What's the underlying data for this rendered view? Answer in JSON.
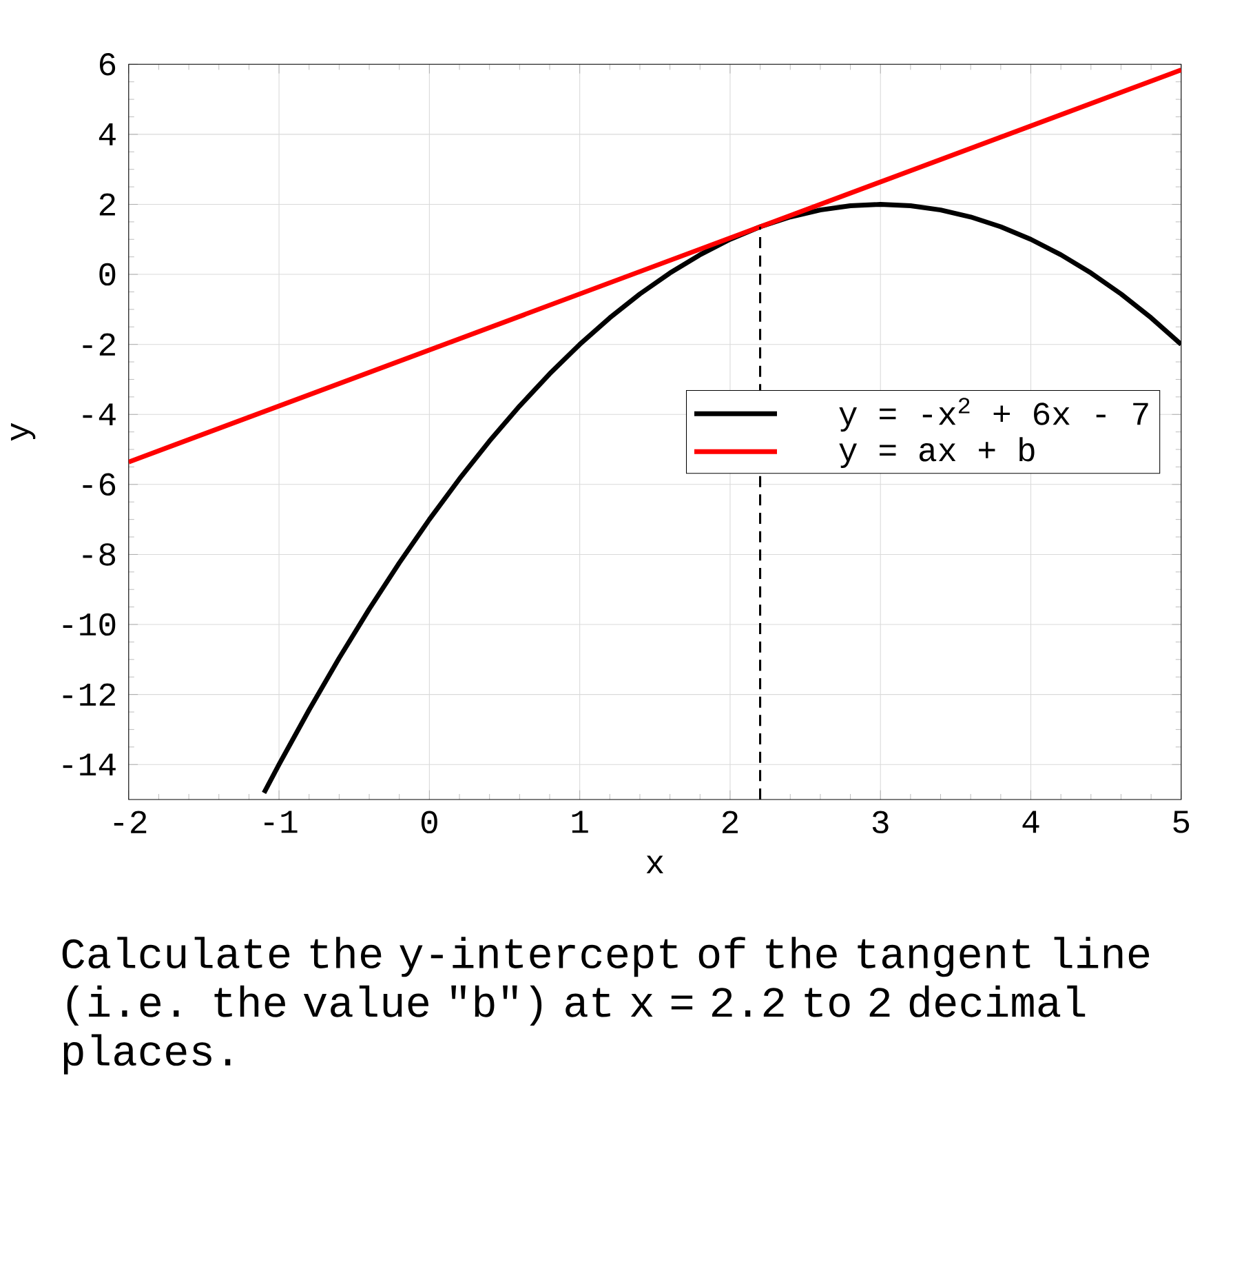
{
  "chart_data": {
    "type": "line",
    "xlabel": "x",
    "ylabel": "y",
    "xlim": [
      -2,
      5
    ],
    "ylim": [
      -15,
      6
    ],
    "xticks": [
      -2,
      -1,
      0,
      1,
      2,
      3,
      4,
      5
    ],
    "yticks": [
      -14,
      -12,
      -10,
      -8,
      -6,
      -4,
      -2,
      0,
      2,
      4,
      6
    ],
    "grid": true,
    "legend": "right",
    "series": [
      {
        "name": "y = -x$^{2}$ + 6x - 7",
        "color": "#000000",
        "x": [
          -1.1,
          -1.0,
          -0.8,
          -0.6,
          -0.4,
          -0.2,
          0,
          0.2,
          0.4,
          0.6,
          0.8,
          1.0,
          1.2,
          1.4,
          1.6,
          1.8,
          2.0,
          2.2,
          2.4,
          2.6,
          2.8,
          3.0,
          3.2,
          3.4,
          3.6,
          3.8,
          4.0,
          4.2,
          4.4,
          4.6,
          4.8,
          5.0
        ],
        "values": [
          -14.81,
          -14,
          -12.44,
          -10.96,
          -9.56,
          -8.24,
          -7,
          -5.84,
          -4.76,
          -3.76,
          -2.84,
          -2,
          -1.24,
          -0.56,
          0.04,
          0.56,
          1,
          1.36,
          1.64,
          1.84,
          1.96,
          2,
          1.96,
          1.84,
          1.64,
          1.36,
          1,
          0.56,
          0.04,
          -0.56,
          -1.24,
          -2
        ]
      },
      {
        "name": "y = ax + b",
        "color": "#ff0000",
        "x": [
          -2,
          5
        ],
        "values": [
          -5.36,
          5.84
        ]
      },
      {
        "color": "#000000",
        "line_style": "dashed",
        "x": [
          2.2,
          2.2
        ],
        "values": [
          -15,
          1.36
        ]
      }
    ],
    "annotations": [
      "Calculate the y-intercept of the tangent line (i.e. the value \"b\") at x = 2.2 to 2 decimal places."
    ]
  }
}
